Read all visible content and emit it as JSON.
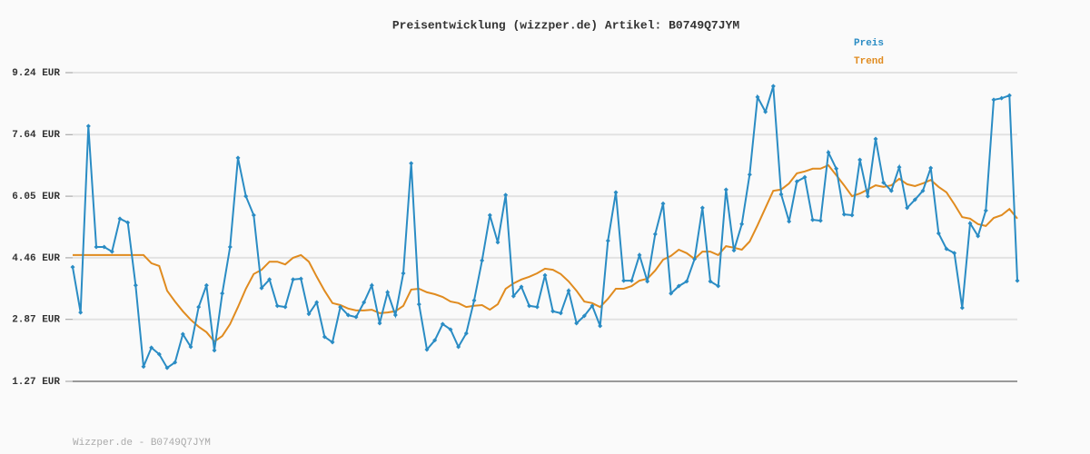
{
  "chart_data": {
    "type": "line",
    "title": "Preisentwicklung (wizzper.de) Artikel: B0749Q7JYM",
    "footer": "Wizzper.de - B0749Q7JYM",
    "legend": "top-right",
    "grid": true,
    "ylim": [
      1.27,
      9.24
    ],
    "yticks": [
      {
        "value": 1.27,
        "label": "1.27 EUR"
      },
      {
        "value": 2.87,
        "label": "2.87 EUR"
      },
      {
        "value": 4.46,
        "label": "4.46 EUR"
      },
      {
        "value": 6.05,
        "label": "6.05 EUR"
      },
      {
        "value": 7.64,
        "label": "7.64 EUR"
      },
      {
        "value": 9.24,
        "label": "9.24 EUR"
      }
    ],
    "categories": [
      null,
      null,
      null,
      null,
      null,
      null,
      null,
      null,
      null,
      null,
      null,
      null,
      null,
      null,
      null,
      null,
      null,
      null,
      null,
      null,
      null,
      null,
      null,
      null,
      null,
      null,
      null,
      null,
      null,
      null,
      null,
      null,
      null,
      null,
      null,
      null,
      null,
      null,
      null,
      null,
      null,
      null,
      null,
      null,
      null,
      null,
      null,
      null,
      null,
      null,
      null,
      null,
      null,
      null,
      null,
      null,
      null,
      null,
      null,
      null,
      null,
      null,
      null,
      null,
      null,
      null,
      null,
      null,
      null,
      null,
      null,
      null,
      null,
      null,
      null,
      null,
      null,
      null,
      null,
      null,
      null,
      null,
      null,
      null,
      null,
      null,
      null,
      null,
      null,
      null,
      null,
      null,
      null,
      null,
      null,
      null,
      null,
      null,
      null,
      null,
      null,
      null,
      null,
      null,
      null,
      null,
      null,
      null,
      null,
      null,
      null,
      null,
      null,
      null,
      null,
      null,
      null,
      null,
      null,
      null,
      null
    ],
    "series": [
      {
        "name": "Preis",
        "color": "#2a8cc4",
        "markers": true,
        "values": [
          4.22,
          3.05,
          7.86,
          4.74,
          4.74,
          4.62,
          5.47,
          5.37,
          3.75,
          1.65,
          2.14,
          1.97,
          1.62,
          1.76,
          2.49,
          2.16,
          3.19,
          3.75,
          2.07,
          3.54,
          4.74,
          7.04,
          6.05,
          5.56,
          3.68,
          3.9,
          3.22,
          3.19,
          3.9,
          3.92,
          3.01,
          3.31,
          2.42,
          2.28,
          3.19,
          2.98,
          2.93,
          3.31,
          3.75,
          2.77,
          3.57,
          2.98,
          4.06,
          6.9,
          3.26,
          2.09,
          2.33,
          2.75,
          2.61,
          2.16,
          2.51,
          3.36,
          4.39,
          5.56,
          4.86,
          6.08,
          3.47,
          3.71,
          3.22,
          3.19,
          4.01,
          3.08,
          3.03,
          3.61,
          2.77,
          2.96,
          3.22,
          2.7,
          4.9,
          6.15,
          3.87,
          3.87,
          4.53,
          3.85,
          5.07,
          5.86,
          3.54,
          3.73,
          3.85,
          4.43,
          5.75,
          3.85,
          3.73,
          6.22,
          4.65,
          5.33,
          6.61,
          8.61,
          8.23,
          8.89,
          6.1,
          5.4,
          6.43,
          6.54,
          5.44,
          5.42,
          7.18,
          6.76,
          5.58,
          5.56,
          6.99,
          6.05,
          7.53,
          6.4,
          6.19,
          6.8,
          5.75,
          5.96,
          6.19,
          6.78,
          5.09,
          4.69,
          4.58,
          3.17,
          5.35,
          5.02,
          5.68,
          8.54,
          8.58,
          8.65,
          3.87
        ]
      },
      {
        "name": "Trend",
        "color": "#e08b1f",
        "markers": false,
        "values": [
          4.53,
          4.53,
          4.53,
          4.53,
          4.53,
          4.53,
          4.53,
          4.53,
          4.53,
          4.53,
          4.32,
          4.25,
          3.61,
          3.33,
          3.08,
          2.86,
          2.68,
          2.54,
          2.3,
          2.44,
          2.75,
          3.19,
          3.66,
          4.04,
          4.15,
          4.36,
          4.36,
          4.29,
          4.46,
          4.53,
          4.36,
          3.97,
          3.61,
          3.29,
          3.24,
          3.15,
          3.1,
          3.1,
          3.12,
          3.03,
          3.05,
          3.08,
          3.22,
          3.64,
          3.66,
          3.57,
          3.52,
          3.45,
          3.33,
          3.29,
          3.19,
          3.22,
          3.24,
          3.12,
          3.26,
          3.66,
          3.8,
          3.9,
          3.97,
          4.06,
          4.18,
          4.15,
          4.04,
          3.85,
          3.61,
          3.33,
          3.29,
          3.19,
          3.4,
          3.66,
          3.66,
          3.73,
          3.87,
          3.92,
          4.13,
          4.41,
          4.51,
          4.67,
          4.58,
          4.43,
          4.62,
          4.62,
          4.53,
          4.76,
          4.72,
          4.67,
          4.88,
          5.3,
          5.75,
          6.19,
          6.22,
          6.38,
          6.64,
          6.69,
          6.76,
          6.76,
          6.85,
          6.59,
          6.33,
          6.05,
          6.12,
          6.22,
          6.33,
          6.29,
          6.33,
          6.5,
          6.36,
          6.31,
          6.38,
          6.47,
          6.29,
          6.15,
          5.84,
          5.51,
          5.47,
          5.33,
          5.28,
          5.49,
          5.56,
          5.72,
          5.47
        ]
      }
    ]
  }
}
